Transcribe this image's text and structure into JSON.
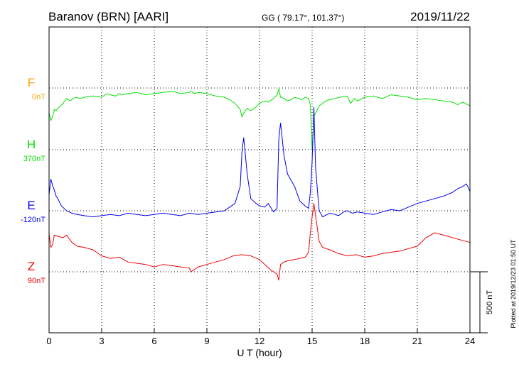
{
  "header": {
    "station": "Baranov (BRN)  [AARI]",
    "coords": "GG ( 79.17°, 101.37°)",
    "date": "2019/11/22"
  },
  "footer": {
    "plotted_note": "Plotted at 2019/12/23 01:50 UT"
  },
  "chart_data": {
    "type": "line",
    "xlabel": "U T (hour)",
    "xlim": [
      0,
      24
    ],
    "xticks": [
      "0",
      "3",
      "6",
      "9",
      "12",
      "15",
      "18",
      "21",
      "24"
    ],
    "grid": true,
    "scale_bar": {
      "label": "500 nT",
      "value_nT": 500
    },
    "series": [
      {
        "name": "F",
        "baseline_label": "0nT",
        "color": "#ffa500",
        "x": [],
        "y": []
      },
      {
        "name": "H",
        "baseline_label": "370nT",
        "color": "#00e000",
        "x": [
          0,
          0.1,
          0.2,
          0.3,
          0.4,
          0.5,
          0.6,
          0.8,
          1,
          1.2,
          1.5,
          1.8,
          2,
          2.5,
          3,
          3.3,
          3.5,
          3.8,
          4,
          4.2,
          4.5,
          5,
          5.5,
          6,
          6.5,
          7,
          7.5,
          8,
          8.1,
          8.3,
          8.5,
          9,
          9.5,
          10,
          10.3,
          10.6,
          10.9,
          11,
          11.1,
          11.3,
          11.5,
          11.8,
          12,
          12.3,
          12.5,
          12.8,
          13,
          13.1,
          13.2,
          13.4,
          13.6,
          13.8,
          14,
          14.2,
          14.4,
          14.6,
          14.8,
          14.9,
          15,
          15.1,
          15.2,
          15.4,
          15.6,
          15.8,
          16,
          16.3,
          16.6,
          17,
          17.2,
          17.4,
          17.6,
          18,
          18.5,
          19,
          19.5,
          20,
          20.5,
          21,
          21.5,
          22,
          22.5,
          23,
          23.3,
          23.6,
          24
        ],
        "y": [
          300,
          240,
          270,
          330,
          320,
          340,
          350,
          380,
          420,
          400,
          430,
          420,
          430,
          440,
          430,
          460,
          450,
          440,
          460,
          450,
          460,
          470,
          450,
          460,
          470,
          480,
          460,
          470,
          480,
          460,
          470,
          460,
          440,
          430,
          410,
          380,
          330,
          270,
          300,
          340,
          320,
          350,
          380,
          400,
          390,
          420,
          450,
          500,
          430,
          420,
          400,
          410,
          430,
          420,
          410,
          430,
          420,
          370,
          0,
          270,
          300,
          360,
          380,
          400,
          410,
          420,
          430,
          440,
          380,
          420,
          400,
          430,
          440,
          420,
          450,
          440,
          430,
          410,
          420,
          410,
          400,
          390,
          370,
          390,
          360
        ]
      },
      {
        "name": "E",
        "baseline_label": "-120nT",
        "color": "#0000ee",
        "x": [
          0,
          0.1,
          0.2,
          0.3,
          0.4,
          0.5,
          0.7,
          1,
          1.3,
          1.6,
          2,
          2.5,
          3,
          3.5,
          4,
          4.5,
          5,
          5.5,
          6,
          6.5,
          7,
          7.5,
          8,
          8.5,
          9,
          9.5,
          10,
          10.3,
          10.6,
          10.9,
          11,
          11.1,
          11.3,
          11.5,
          11.8,
          12,
          12.3,
          12.5,
          12.8,
          13,
          13.1,
          13.2,
          13.4,
          13.6,
          14,
          14.3,
          14.6,
          14.8,
          14.9,
          15,
          15.1,
          15.2,
          15.4,
          15.6,
          16,
          16.3,
          16.5,
          16.8,
          17,
          17.3,
          17.6,
          18,
          18.5,
          19,
          19.5,
          20,
          20.5,
          21,
          21.5,
          22,
          22.5,
          23,
          23.3,
          23.6,
          23.8,
          24
        ],
        "y": [
          130,
          260,
          210,
          170,
          120,
          100,
          40,
          0,
          -20,
          -30,
          -40,
          -50,
          -40,
          -30,
          -40,
          -20,
          -30,
          -40,
          -30,
          -20,
          -30,
          -40,
          -20,
          -30,
          -20,
          -10,
          0,
          30,
          60,
          200,
          480,
          600,
          300,
          100,
          60,
          40,
          30,
          60,
          -10,
          20,
          580,
          720,
          450,
          300,
          200,
          80,
          40,
          20,
          150,
          400,
          850,
          350,
          0,
          -50,
          -20,
          -30,
          -40,
          -10,
          0,
          -20,
          -10,
          -20,
          -30,
          -10,
          10,
          0,
          30,
          60,
          80,
          100,
          120,
          150,
          180,
          200,
          220,
          160
        ]
      },
      {
        "name": "Z",
        "baseline_label": "90nT",
        "color": "#ee0000",
        "x": [
          0,
          0.1,
          0.2,
          0.3,
          0.5,
          0.8,
          1,
          1.3,
          1.6,
          2,
          2.5,
          3,
          3.5,
          4,
          4.5,
          5,
          5.5,
          6,
          6.5,
          7,
          7.5,
          8,
          8.1,
          8.3,
          8.5,
          9,
          9.5,
          10,
          10.5,
          11,
          11.5,
          12,
          12.3,
          12.6,
          13,
          13.1,
          13.2,
          13.4,
          13.6,
          14,
          14.3,
          14.6,
          14.8,
          14.9,
          15,
          15.1,
          15.2,
          15.4,
          15.6,
          16,
          16.5,
          17,
          17.5,
          18,
          18.5,
          19,
          19.5,
          20,
          20.5,
          21,
          21.5,
          22,
          22.5,
          23,
          23.5,
          24
        ],
        "y": [
          310,
          200,
          220,
          300,
          290,
          280,
          300,
          240,
          210,
          200,
          180,
          130,
          110,
          120,
          80,
          70,
          60,
          40,
          60,
          50,
          40,
          30,
          0,
          20,
          40,
          60,
          80,
          100,
          130,
          140,
          130,
          100,
          60,
          20,
          -20,
          -70,
          60,
          80,
          90,
          100,
          110,
          120,
          160,
          320,
          450,
          560,
          460,
          250,
          200,
          180,
          150,
          130,
          140,
          120,
          130,
          150,
          160,
          170,
          190,
          210,
          280,
          320,
          300,
          280,
          260,
          240
        ]
      }
    ]
  }
}
